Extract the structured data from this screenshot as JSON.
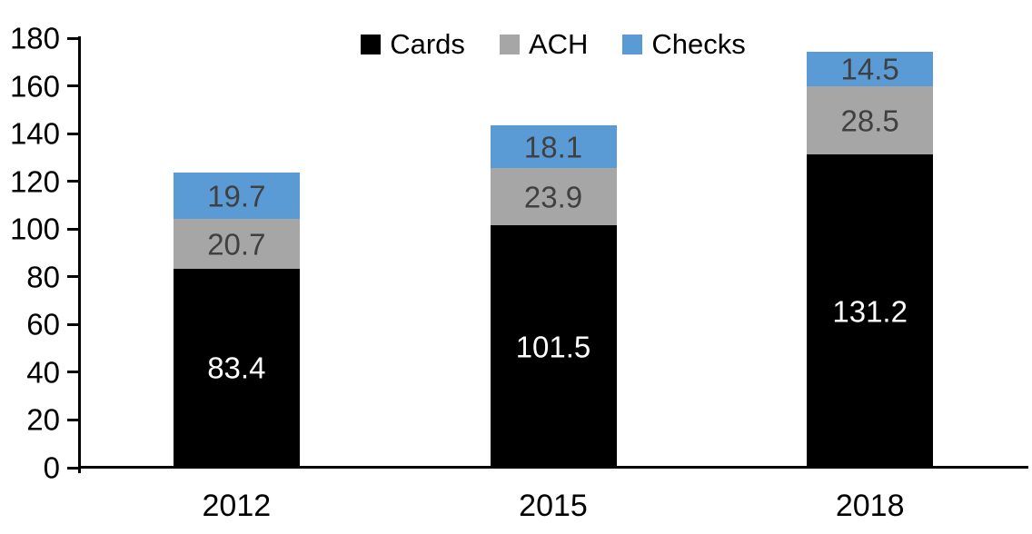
{
  "chart_data": {
    "type": "bar",
    "stacked": true,
    "categories": [
      "2012",
      "2015",
      "2018"
    ],
    "series": [
      {
        "name": "Cards",
        "color": "#000000",
        "label_color": "#FFFFFF",
        "values": [
          83.4,
          101.5,
          131.2
        ]
      },
      {
        "name": "ACH",
        "color": "#A6A6A6",
        "label_color": "#404040",
        "values": [
          20.7,
          23.9,
          28.5
        ]
      },
      {
        "name": "Checks",
        "color": "#5B9BD5",
        "label_color": "#404040",
        "values": [
          19.7,
          18.1,
          14.5
        ]
      }
    ],
    "title": "",
    "xlabel": "",
    "ylabel": "",
    "ylim": [
      0,
      180
    ],
    "ytick_step": 20,
    "grid": false,
    "legend_position": "top-center",
    "axis_color": "#000000",
    "background_color": "#FFFFFF",
    "data_labels_shown": true,
    "decimals": 1
  }
}
